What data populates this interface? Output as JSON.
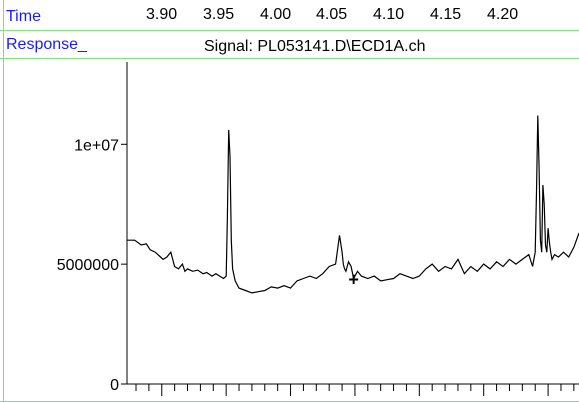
{
  "header": {
    "time_label": "Time",
    "response_label": "Response_",
    "signal_title": "Signal: PL053141.D\\ECD1A.ch"
  },
  "colors": {
    "label_blue": "#1a1aff",
    "frame_green": "#7fe07f",
    "trace": "#000000"
  },
  "chart_data": {
    "type": "line",
    "x_tick_labels": [
      "3.90",
      "3.95",
      "4.00",
      "4.05",
      "4.10",
      "4.15",
      "4.20"
    ],
    "x_ticks": [
      3.9,
      3.95,
      4.0,
      4.05,
      4.1,
      4.15,
      4.2
    ],
    "y_tick_labels": [
      "0",
      "5000000",
      "1e+07"
    ],
    "y_ticks": [
      0,
      5000000,
      10000000
    ],
    "xlim": [
      3.873,
      4.224
    ],
    "ylim": [
      0,
      13600000
    ],
    "marker": {
      "symbol": "+",
      "x": 4.049,
      "y": 4350000
    },
    "series": [
      {
        "x": [
          3.873,
          3.879,
          3.884,
          3.888,
          3.891,
          3.895,
          3.899,
          3.901,
          3.904,
          3.907,
          3.91,
          3.913,
          3.916,
          3.918,
          3.92,
          3.924,
          3.928,
          3.932,
          3.935,
          3.939,
          3.942,
          3.945,
          3.948,
          3.95,
          3.951,
          3.952,
          3.953,
          3.954,
          3.955,
          3.957,
          3.96,
          3.965,
          3.97,
          3.975,
          3.98,
          3.985,
          3.99,
          3.995,
          4.0,
          4.005,
          4.01,
          4.015,
          4.02,
          4.025,
          4.03,
          4.035,
          4.038,
          4.04,
          4.041,
          4.042,
          4.043,
          4.045,
          4.047,
          4.049,
          4.052,
          4.055,
          4.06,
          4.065,
          4.07,
          4.075,
          4.08,
          4.085,
          4.09,
          4.095,
          4.1,
          4.105,
          4.11,
          4.115,
          4.12,
          4.125,
          4.13,
          4.135,
          4.14,
          4.145,
          4.15,
          4.155,
          4.16,
          4.165,
          4.17,
          4.175,
          4.18,
          4.185,
          4.188,
          4.19,
          4.191,
          4.192,
          4.193,
          4.194,
          4.195,
          4.196,
          4.197,
          4.198,
          4.199,
          4.2,
          4.201,
          4.202,
          4.203,
          4.205,
          4.208,
          4.212,
          4.216,
          4.22,
          4.224
        ],
        "y": [
          6000000,
          6000000,
          5800000,
          5850000,
          5600000,
          5500000,
          5300000,
          5200000,
          5300000,
          5500000,
          4900000,
          4800000,
          5000000,
          4700000,
          4800000,
          4700000,
          4750000,
          4600000,
          4650000,
          4500000,
          4600000,
          4500000,
          4400000,
          4500000,
          7000000,
          10600000,
          9500000,
          6000000,
          4800000,
          4300000,
          4000000,
          3900000,
          3800000,
          3850000,
          3900000,
          4050000,
          4000000,
          4100000,
          4000000,
          4300000,
          4400000,
          4500000,
          4400000,
          4600000,
          4900000,
          5000000,
          6200000,
          5500000,
          5000000,
          4800000,
          4700000,
          5100000,
          4900000,
          4400000,
          4700000,
          4500000,
          4400000,
          4500000,
          4300000,
          4350000,
          4400000,
          4600000,
          4500000,
          4400000,
          4500000,
          4800000,
          5000000,
          4700000,
          4900000,
          4800000,
          5200000,
          4600000,
          4900000,
          4700000,
          5000000,
          4800000,
          5100000,
          4900000,
          5200000,
          5000000,
          5200000,
          5400000,
          4900000,
          5500000,
          8000000,
          11200000,
          9000000,
          6000000,
          5500000,
          8300000,
          7500000,
          5800000,
          5500000,
          6500000,
          5900000,
          5500000,
          5200000,
          5400000,
          5300000,
          5500000,
          5300000,
          5700000,
          6300000
        ]
      }
    ]
  }
}
